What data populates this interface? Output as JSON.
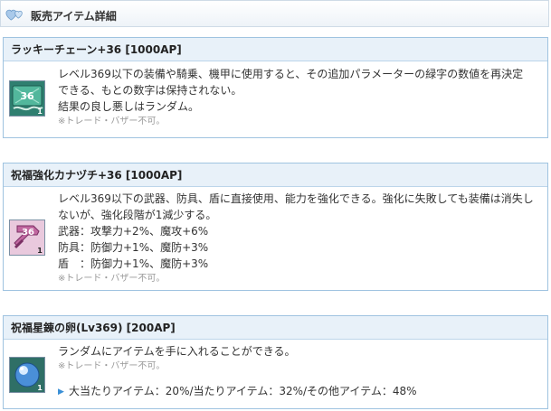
{
  "header": {
    "title": "販売アイテム詳細",
    "icon": "hearts-icon"
  },
  "items": [
    {
      "name": "ラッキーチェーン+36 [1000AP]",
      "icon": "lucky-chain-36-icon",
      "icon_level": "36",
      "icon_count": "1",
      "icon_color": "#3fa08a",
      "description_lines": [
        "レベル369以下の装備や騎乗、機甲に使用すると、その追加パラメーターの緑字の数値を再決定",
        "できる、もとの数字は保持されない。",
        "結果の良し悪しはランダム。"
      ],
      "note": "※トレード・バザー不可。"
    },
    {
      "name": "祝福強化カナヅチ+36 [1000AP]",
      "icon": "blessed-hammer-36-icon",
      "icon_level": "36",
      "icon_count": "1",
      "icon_color": "#b45a9a",
      "description_lines": [
        "レベル369以下の武器、防具、盾に直接使用、能力を強化できる。強化に失敗しても装備は消失し",
        "ないが、強化段階が1減少する。",
        "武器：攻撃力+2%、魔攻+6%",
        "防具：防御力+1%、魔防+3%",
        "盾　：防御力+1%、魔防+3%"
      ],
      "note": "※トレード・バザー不可。"
    },
    {
      "name": "祝福星錬の卵(Lv369) [200AP]",
      "icon": "blessed-star-egg-icon",
      "icon_count": "1",
      "icon_color": "#4a8fd8",
      "description_lines": [
        "ランダムにアイテムを手に入れることができる。"
      ],
      "note": "※トレード・バザー不可。",
      "rates": "大当たりアイテム：20%/当たりアイテム：32%/その他アイテム：48%"
    }
  ]
}
